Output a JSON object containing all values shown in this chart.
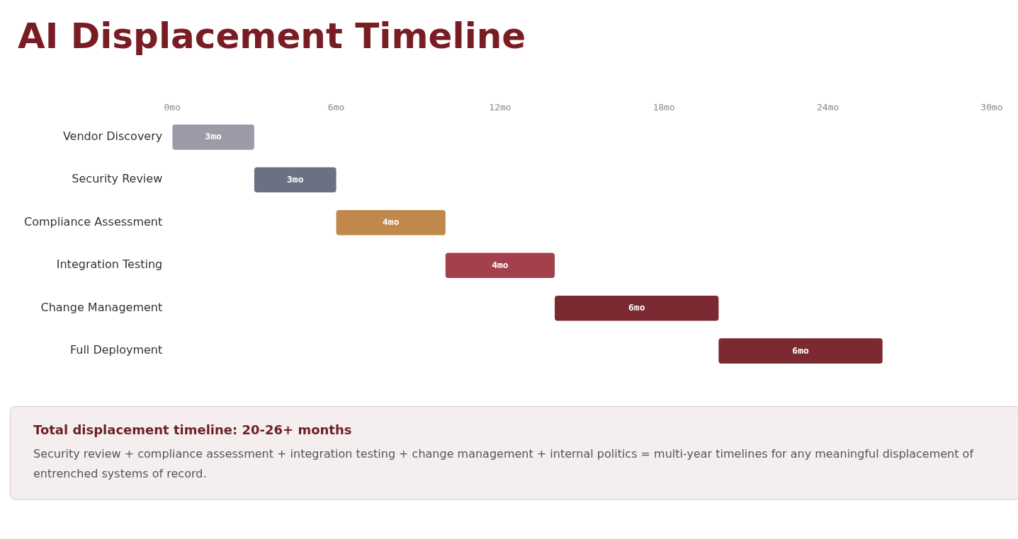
{
  "chart_data": {
    "type": "bar",
    "orientation": "horizontal",
    "title": "AI Displacement Timeline",
    "categories": [
      "Vendor Discovery",
      "Security Review",
      "Compliance Assessment",
      "Integration Testing",
      "Change Management",
      "Full Deployment"
    ],
    "base": [
      0,
      3,
      6,
      10,
      14,
      20
    ],
    "values": [
      3,
      3,
      4,
      4,
      6,
      6
    ],
    "value_labels": [
      "3mo",
      "3mo",
      "4mo",
      "4mo",
      "6mo",
      "6mo"
    ],
    "colors": [
      "#9a9ba6",
      "#6b7083",
      "#c0884a",
      "#a3404c",
      "#7a2a30",
      "#7a2a30"
    ],
    "xlim": [
      0,
      30
    ],
    "xticks": [
      {
        "value": 0,
        "label": "0mo"
      },
      {
        "value": 6,
        "label": "6mo"
      },
      {
        "value": 12,
        "label": "12mo"
      },
      {
        "value": 18,
        "label": "18mo"
      },
      {
        "value": 24,
        "label": "24mo"
      },
      {
        "value": 30,
        "label": "30mo"
      }
    ],
    "grid": false,
    "annotations": [
      "Total displacement timeline: 20-26+ months",
      "Security review + compliance assessment + integration testing + change management + internal politics = multi-year timelines for any meaningful displacement of entrenched systems of record."
    ]
  }
}
